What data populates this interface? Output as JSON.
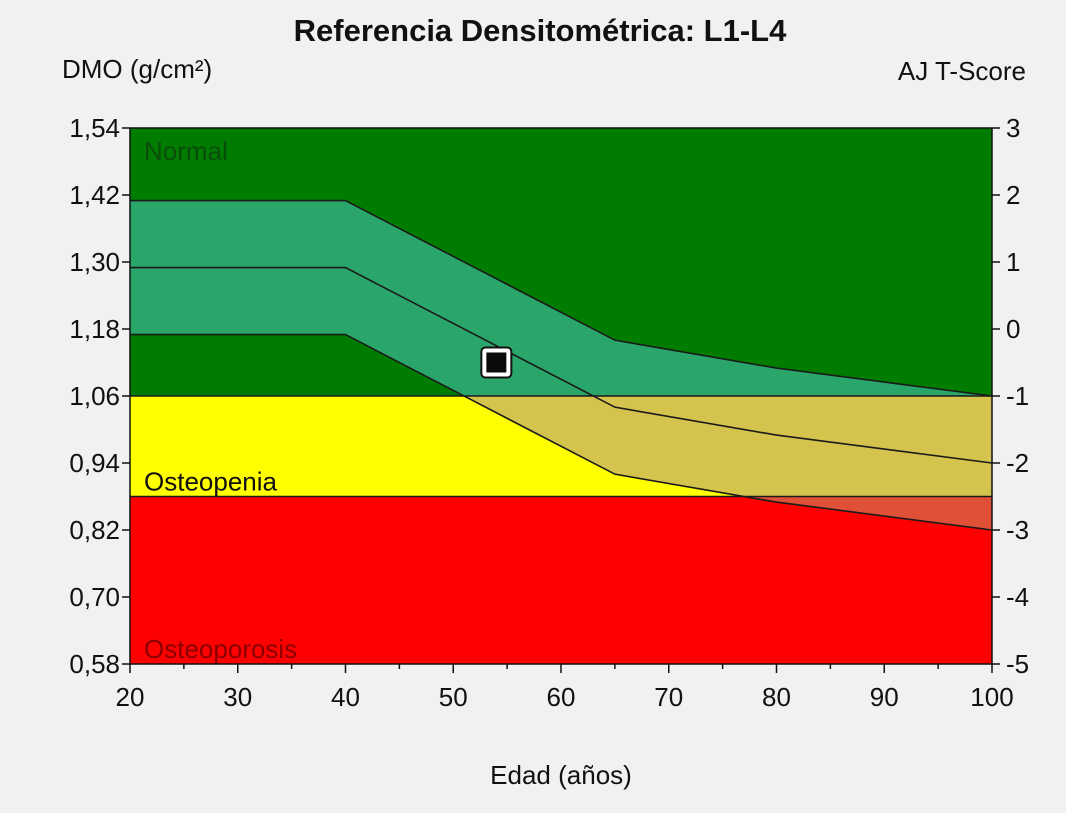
{
  "chart_data": {
    "type": "area",
    "title": "Referencia Densitométrica: L1-L4",
    "ylabel_left": "DMO (g/cm²)",
    "ylabel_right": "AJ T-Score",
    "xlabel": "Edad (años)",
    "xlim": [
      20,
      100
    ],
    "ylim": [
      0.58,
      1.54
    ],
    "x_ticks": [
      20,
      30,
      40,
      50,
      60,
      70,
      80,
      90,
      100
    ],
    "y_ticks": [
      0.58,
      0.7,
      0.82,
      0.94,
      1.06,
      1.18,
      1.3,
      1.42,
      1.54
    ],
    "y_tick_labels": [
      "0,58",
      "0,70",
      "0,82",
      "0,94",
      "1,06",
      "1,18",
      "1,30",
      "1,42",
      "1,54"
    ],
    "t_score_ticks": [
      "-5",
      "-4",
      "-3",
      "-2",
      "-1",
      "0",
      "1",
      "2",
      "3"
    ],
    "zones": [
      {
        "label": "Normal",
        "from": 1.06,
        "to": 1.54,
        "color": "#007d00"
      },
      {
        "label": "Osteopenia",
        "from": 0.88,
        "to": 1.06,
        "color": "#ffff00"
      },
      {
        "label": "Osteoporosis",
        "from": 0.58,
        "to": 0.88,
        "color": "#ff0000"
      }
    ],
    "reference_curves": {
      "x": [
        20,
        40,
        52,
        65,
        80,
        100
      ],
      "upper": [
        1.41,
        1.41,
        1.29,
        1.16,
        1.11,
        1.06
      ],
      "middle": [
        1.29,
        1.29,
        1.17,
        1.04,
        0.99,
        0.94
      ],
      "lower": [
        1.17,
        1.17,
        1.05,
        0.92,
        0.87,
        0.82
      ]
    },
    "band_colors": {
      "normal": "#2ba66b",
      "osteopenia": "#d4c44d",
      "osteoporosis": "#e05036"
    },
    "patient_point": {
      "x": 54,
      "y": 1.12
    },
    "grid": false
  }
}
